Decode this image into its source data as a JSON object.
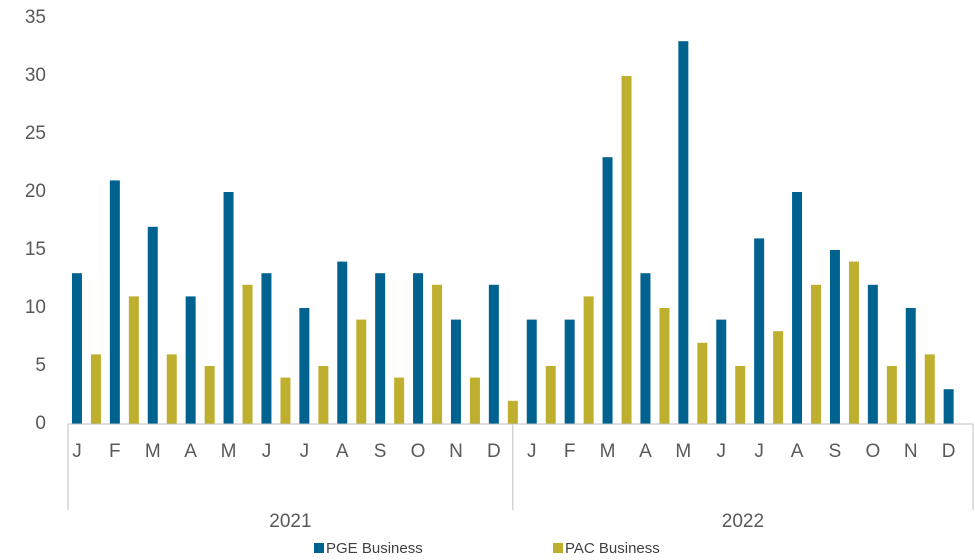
{
  "chart_data": {
    "type": "bar",
    "categories": [
      "J",
      "F",
      "M",
      "A",
      "M",
      "J",
      "J",
      "A",
      "S",
      "O",
      "N",
      "D",
      "J",
      "F",
      "M",
      "A",
      "M",
      "J",
      "J",
      "A",
      "S",
      "O",
      "N",
      "D"
    ],
    "category_groups": [
      "2021",
      "2022"
    ],
    "series": [
      {
        "name": "PGE Business",
        "color": "#00628f",
        "values": [
          13,
          21,
          17,
          11,
          20,
          13,
          10,
          14,
          13,
          13,
          9,
          12,
          9,
          9,
          23,
          13,
          33,
          9,
          16,
          20,
          15,
          12,
          10,
          3
        ]
      },
      {
        "name": "PAC Business",
        "color": "#bfaf2e",
        "values": [
          6,
          11,
          6,
          5,
          12,
          4,
          5,
          9,
          4,
          12,
          4,
          2,
          5,
          11,
          30,
          10,
          7,
          5,
          8,
          12,
          14,
          5,
          6,
          null
        ]
      }
    ],
    "ylim": [
      0,
      35
    ],
    "yticks": [
      0,
      5,
      10,
      15,
      20,
      25,
      30,
      35
    ],
    "legend": "bottom"
  }
}
